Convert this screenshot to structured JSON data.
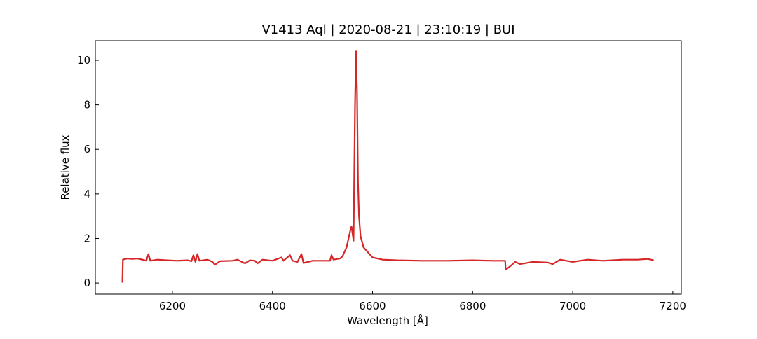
{
  "chart_data": {
    "type": "line",
    "title": "V1413 Aql | 2020-08-21 | 23:10:19 | BUI",
    "x_label": "Wavelength [Å]",
    "y_label": "Relative flux",
    "x": [
      6100,
      6101,
      6110,
      6120,
      6130,
      6140,
      6148,
      6152,
      6156,
      6170,
      6190,
      6210,
      6230,
      6238,
      6242,
      6246,
      6250,
      6254,
      6270,
      6280,
      6285,
      6295,
      6320,
      6330,
      6345,
      6355,
      6365,
      6370,
      6380,
      6400,
      6418,
      6422,
      6435,
      6440,
      6450,
      6458,
      6462,
      6480,
      6500,
      6515,
      6518,
      6522,
      6535,
      6540,
      6548,
      6555,
      6558,
      6562,
      6565,
      6567,
      6569,
      6571,
      6573,
      6576,
      6582,
      6590,
      6600,
      6620,
      6650,
      6700,
      6750,
      6800,
      6840,
      6865,
      6866,
      6875,
      6885,
      6895,
      6920,
      6950,
      6960,
      6975,
      7000,
      7030,
      7060,
      7100,
      7130,
      7150,
      7162
    ],
    "series": [
      {
        "name": "V1413 Aql",
        "color": "#d62728",
        "values": [
          0.02,
          1.05,
          1.1,
          1.08,
          1.1,
          1.05,
          1.0,
          1.3,
          1.0,
          1.05,
          1.02,
          1.0,
          1.02,
          0.98,
          1.25,
          0.95,
          1.3,
          1.0,
          1.05,
          0.95,
          0.82,
          0.98,
          1.0,
          1.05,
          0.88,
          1.02,
          1.0,
          0.88,
          1.05,
          1.0,
          1.15,
          1.0,
          1.25,
          1.0,
          0.95,
          1.3,
          0.9,
          1.0,
          1.0,
          1.0,
          1.25,
          1.05,
          1.1,
          1.2,
          1.6,
          2.3,
          2.55,
          1.9,
          8.0,
          10.4,
          8.5,
          4.5,
          3.0,
          2.1,
          1.6,
          1.4,
          1.15,
          1.05,
          1.02,
          1.0,
          1.0,
          1.02,
          1.0,
          1.0,
          0.6,
          0.75,
          0.95,
          0.85,
          0.95,
          0.92,
          0.85,
          1.05,
          0.95,
          1.05,
          1.0,
          1.05,
          1.05,
          1.08,
          1.02
        ]
      }
    ],
    "xlim": [
      6046,
      7217
    ],
    "ylim": [
      -0.5,
      10.88
    ],
    "xticks": [
      6200,
      6400,
      6600,
      6800,
      7000,
      7200
    ],
    "yticks": [
      0,
      2,
      4,
      6,
      8,
      10
    ]
  }
}
